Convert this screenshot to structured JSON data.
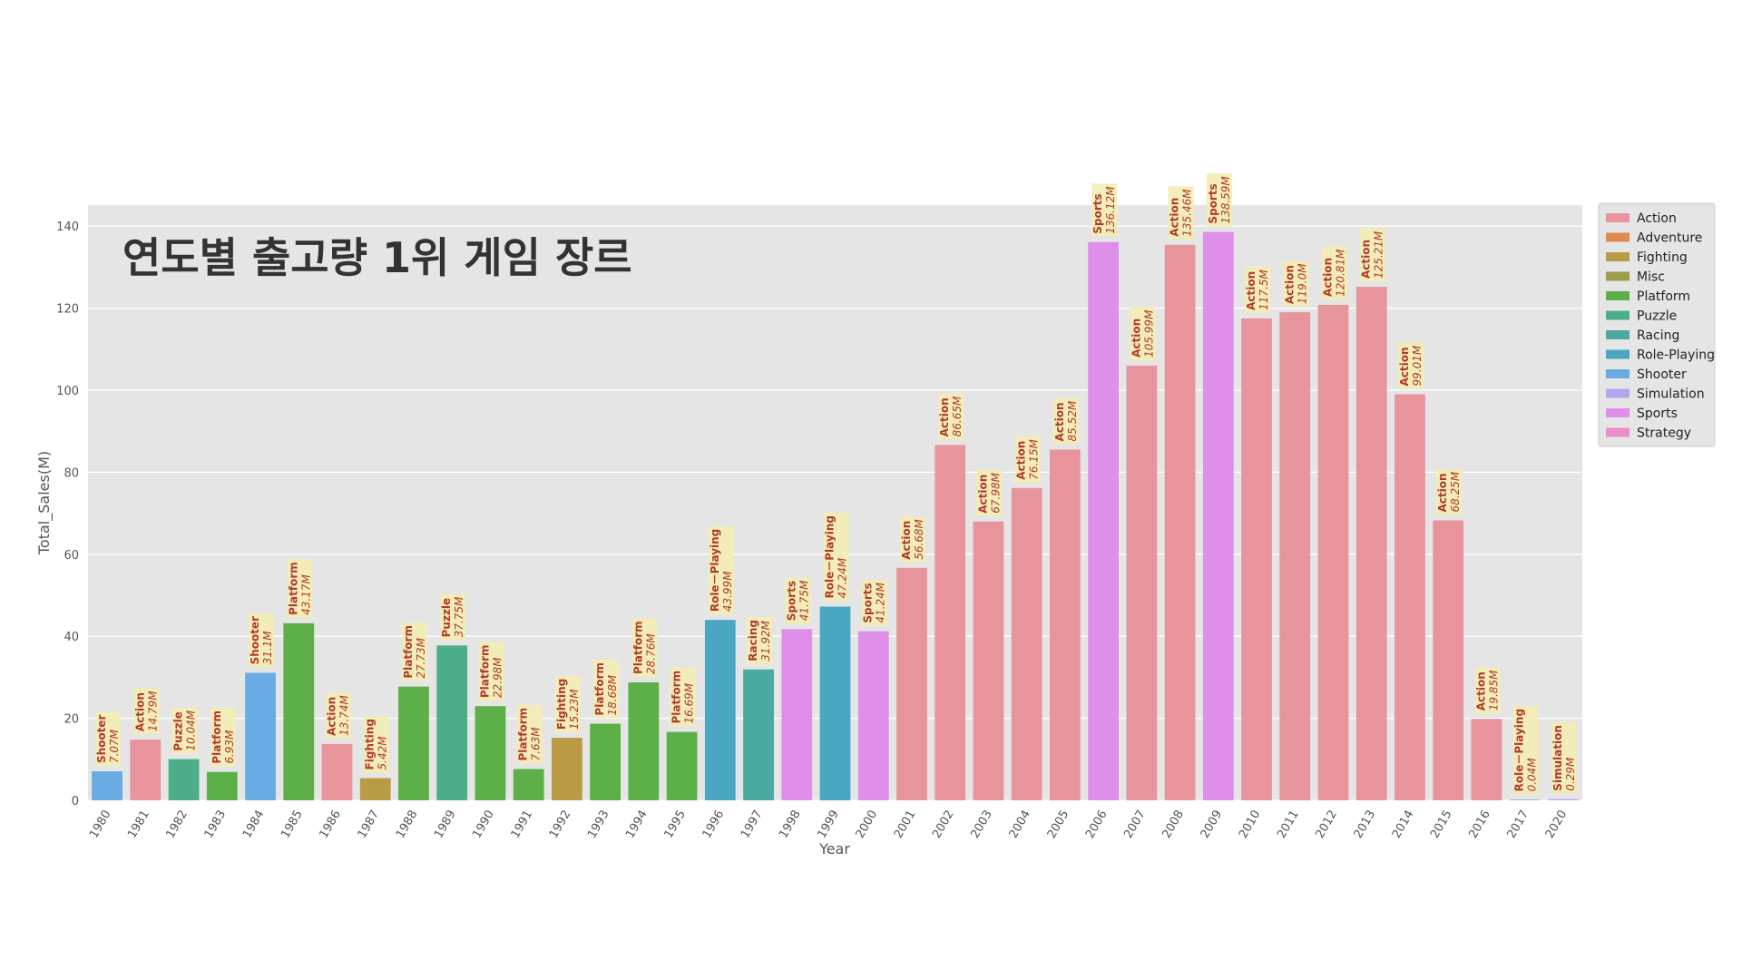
{
  "chart_data": {
    "type": "bar",
    "title": "연도별 출고량 1위 게임 장르",
    "xlabel": "Year",
    "ylabel": "Total_Sales(M)",
    "ylim": [
      0,
      145
    ],
    "yticks": [
      0,
      20,
      40,
      60,
      80,
      100,
      120,
      140
    ],
    "grid": true,
    "legend_position": "right",
    "genre_colors": {
      "Action": "#e8949c",
      "Adventure": "#e08a52",
      "Fighting": "#b99a45",
      "Misc": "#9a9e48",
      "Platform": "#5daf48",
      "Puzzle": "#4cae88",
      "Racing": "#4aa9a0",
      "Role-Playing": "#4aa7c2",
      "Shooter": "#69abe2",
      "Simulation": "#b2a7ee",
      "Sports": "#df8ee9",
      "Strategy": "#e88fc9"
    },
    "legend": [
      "Action",
      "Adventure",
      "Fighting",
      "Misc",
      "Platform",
      "Puzzle",
      "Racing",
      "Role-Playing",
      "Shooter",
      "Simulation",
      "Sports",
      "Strategy"
    ],
    "bars": [
      {
        "year": "1980",
        "genre": "Shooter",
        "label_genre": "Shooter",
        "value": 7.07,
        "value_label": "7.07M"
      },
      {
        "year": "1981",
        "genre": "Action",
        "label_genre": "Action",
        "value": 14.79,
        "value_label": "14.79M"
      },
      {
        "year": "1982",
        "genre": "Puzzle",
        "label_genre": "Puzzle",
        "value": 10.04,
        "value_label": "10.04M"
      },
      {
        "year": "1983",
        "genre": "Platform",
        "label_genre": "Platform",
        "value": 6.93,
        "value_label": "6.93M"
      },
      {
        "year": "1984",
        "genre": "Shooter",
        "label_genre": "Shooter",
        "value": 31.1,
        "value_label": "31.1M"
      },
      {
        "year": "1985",
        "genre": "Platform",
        "label_genre": "Platform",
        "value": 43.17,
        "value_label": "43.17M"
      },
      {
        "year": "1986",
        "genre": "Action",
        "label_genre": "Action",
        "value": 13.74,
        "value_label": "13.74M"
      },
      {
        "year": "1987",
        "genre": "Fighting",
        "label_genre": "Fighting",
        "value": 5.42,
        "value_label": "5.42M"
      },
      {
        "year": "1988",
        "genre": "Platform",
        "label_genre": "Platform",
        "value": 27.73,
        "value_label": "27.73M"
      },
      {
        "year": "1989",
        "genre": "Puzzle",
        "label_genre": "Puzzle",
        "value": 37.75,
        "value_label": "37.75M"
      },
      {
        "year": "1990",
        "genre": "Platform",
        "label_genre": "Platform",
        "value": 22.98,
        "value_label": "22.98M"
      },
      {
        "year": "1991",
        "genre": "Platform",
        "label_genre": "Platform",
        "value": 7.63,
        "value_label": "7.63M"
      },
      {
        "year": "1992",
        "genre": "Fighting",
        "label_genre": "Fighting",
        "value": 15.23,
        "value_label": "15.23M"
      },
      {
        "year": "1993",
        "genre": "Platform",
        "label_genre": "Platform",
        "value": 18.68,
        "value_label": "18.68M"
      },
      {
        "year": "1994",
        "genre": "Platform",
        "label_genre": "Platform",
        "value": 28.76,
        "value_label": "28.76M"
      },
      {
        "year": "1995",
        "genre": "Platform",
        "label_genre": "Platform",
        "value": 16.69,
        "value_label": "16.69M"
      },
      {
        "year": "1996",
        "genre": "Role-Playing",
        "label_genre": "Role－Playing",
        "value": 43.99,
        "value_label": "43.99M"
      },
      {
        "year": "1997",
        "genre": "Racing",
        "label_genre": "Racing",
        "value": 31.92,
        "value_label": "31.92M"
      },
      {
        "year": "1998",
        "genre": "Sports",
        "label_genre": "Sports",
        "value": 41.75,
        "value_label": "41.75M"
      },
      {
        "year": "1999",
        "genre": "Role-Playing",
        "label_genre": "Role－Playing",
        "value": 47.24,
        "value_label": "47.24M"
      },
      {
        "year": "2000",
        "genre": "Sports",
        "label_genre": "Sports",
        "value": 41.24,
        "value_label": "41.24M"
      },
      {
        "year": "2001",
        "genre": "Action",
        "label_genre": "Action",
        "value": 56.68,
        "value_label": "56.68M"
      },
      {
        "year": "2002",
        "genre": "Action",
        "label_genre": "Action",
        "value": 86.65,
        "value_label": "86.65M"
      },
      {
        "year": "2003",
        "genre": "Action",
        "label_genre": "Action",
        "value": 67.98,
        "value_label": "67.98M"
      },
      {
        "year": "2004",
        "genre": "Action",
        "label_genre": "Action",
        "value": 76.15,
        "value_label": "76.15M"
      },
      {
        "year": "2005",
        "genre": "Action",
        "label_genre": "Action",
        "value": 85.52,
        "value_label": "85.52M"
      },
      {
        "year": "2006",
        "genre": "Sports",
        "label_genre": "Sports",
        "value": 136.12,
        "value_label": "136.12M"
      },
      {
        "year": "2007",
        "genre": "Action",
        "label_genre": "Action",
        "value": 105.99,
        "value_label": "105.99M"
      },
      {
        "year": "2008",
        "genre": "Action",
        "label_genre": "Action",
        "value": 135.46,
        "value_label": "135.46M"
      },
      {
        "year": "2009",
        "genre": "Sports",
        "label_genre": "Sports",
        "value": 138.59,
        "value_label": "138.59M"
      },
      {
        "year": "2010",
        "genre": "Action",
        "label_genre": "Action",
        "value": 117.5,
        "value_label": "117.5M"
      },
      {
        "year": "2011",
        "genre": "Action",
        "label_genre": "Action",
        "value": 119.0,
        "value_label": "119.0M"
      },
      {
        "year": "2012",
        "genre": "Action",
        "label_genre": "Action",
        "value": 120.81,
        "value_label": "120.81M"
      },
      {
        "year": "2013",
        "genre": "Action",
        "label_genre": "Action",
        "value": 125.21,
        "value_label": "125.21M"
      },
      {
        "year": "2014",
        "genre": "Action",
        "label_genre": "Action",
        "value": 99.01,
        "value_label": "99.01M"
      },
      {
        "year": "2015",
        "genre": "Action",
        "label_genre": "Action",
        "value": 68.25,
        "value_label": "68.25M"
      },
      {
        "year": "2016",
        "genre": "Action",
        "label_genre": "Action",
        "value": 19.85,
        "value_label": "19.85M"
      },
      {
        "year": "2017",
        "genre": "Role-Playing",
        "label_genre": "Role－Playing",
        "value": 0.04,
        "value_label": "0.04M"
      },
      {
        "year": "2020",
        "genre": "Simulation",
        "label_genre": "Simulation",
        "value": 0.29,
        "value_label": "0.29M"
      }
    ]
  }
}
